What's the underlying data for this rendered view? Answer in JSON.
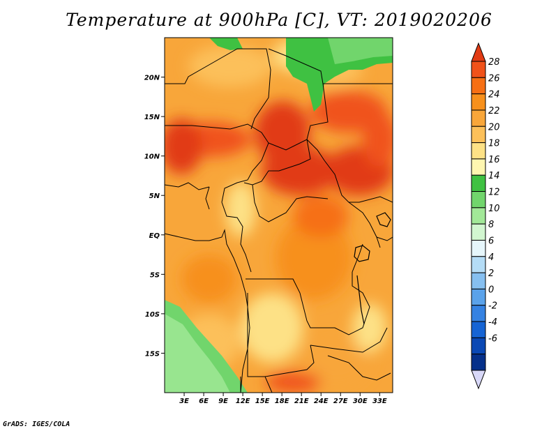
{
  "title": "Temperature at 900hPa [C], VT: 2019020206",
  "credit": "GrADS: IGES/COLA",
  "map": {
    "lon_range": [
      0,
      35
    ],
    "lat_range": [
      -20,
      25
    ],
    "lon_ticks": [
      {
        "value": 3,
        "label": "3E"
      },
      {
        "value": 6,
        "label": "6E"
      },
      {
        "value": 9,
        "label": "9E"
      },
      {
        "value": 12,
        "label": "12E"
      },
      {
        "value": 15,
        "label": "15E"
      },
      {
        "value": 18,
        "label": "18E"
      },
      {
        "value": 21,
        "label": "21E"
      },
      {
        "value": 24,
        "label": "24E"
      },
      {
        "value": 27,
        "label": "27E"
      },
      {
        "value": 30,
        "label": "30E"
      },
      {
        "value": 33,
        "label": "33E"
      }
    ],
    "lat_ticks": [
      {
        "value": 20,
        "label": "20N"
      },
      {
        "value": 15,
        "label": "15N"
      },
      {
        "value": 10,
        "label": "10N"
      },
      {
        "value": 5,
        "label": "5N"
      },
      {
        "value": 0,
        "label": "EQ"
      },
      {
        "value": -5,
        "label": "5S"
      },
      {
        "value": -10,
        "label": "10S"
      },
      {
        "value": -15,
        "label": "15S"
      }
    ]
  },
  "colorbar": {
    "labels": [
      "28",
      "26",
      "24",
      "22",
      "20",
      "18",
      "16",
      "14",
      "12",
      "10",
      "8",
      "6",
      "4",
      "2",
      "0",
      "-2",
      "-4",
      "-6"
    ],
    "colors": [
      "#e13b14",
      "#f0521a",
      "#f66f14",
      "#f7901c",
      "#f8a63a",
      "#fcc05a",
      "#fde186",
      "#fef6b0",
      "#3fc142",
      "#71d56c",
      "#a2e898",
      "#d2f6d0",
      "#e6f6fb",
      "#b4dcf6",
      "#86bff0",
      "#5aa2ea",
      "#3582e2",
      "#1664d4",
      "#0a48b4",
      "#05308a",
      "#00145a"
    ],
    "colors_order": "top-to-bottom"
  }
}
